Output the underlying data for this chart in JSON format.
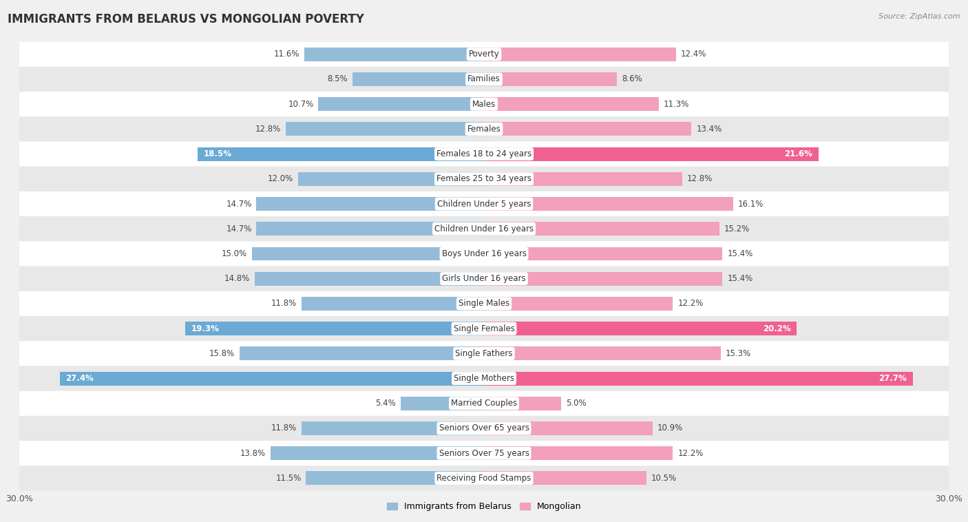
{
  "title": "IMMIGRANTS FROM BELARUS VS MONGOLIAN POVERTY",
  "source": "Source: ZipAtlas.com",
  "categories": [
    "Poverty",
    "Families",
    "Males",
    "Females",
    "Females 18 to 24 years",
    "Females 25 to 34 years",
    "Children Under 5 years",
    "Children Under 16 years",
    "Boys Under 16 years",
    "Girls Under 16 years",
    "Single Males",
    "Single Females",
    "Single Fathers",
    "Single Mothers",
    "Married Couples",
    "Seniors Over 65 years",
    "Seniors Over 75 years",
    "Receiving Food Stamps"
  ],
  "left_values": [
    11.6,
    8.5,
    10.7,
    12.8,
    18.5,
    12.0,
    14.7,
    14.7,
    15.0,
    14.8,
    11.8,
    19.3,
    15.8,
    27.4,
    5.4,
    11.8,
    13.8,
    11.5
  ],
  "right_values": [
    12.4,
    8.6,
    11.3,
    13.4,
    21.6,
    12.8,
    16.1,
    15.2,
    15.4,
    15.4,
    12.2,
    20.2,
    15.3,
    27.7,
    5.0,
    10.9,
    12.2,
    10.5
  ],
  "left_color_normal": "#94bcd8",
  "right_color_normal": "#f2a0bc",
  "left_color_highlight": "#6aaad4",
  "right_color_highlight": "#f06090",
  "highlight_rows": [
    4,
    11,
    13
  ],
  "xlim": 30.0,
  "left_label": "Immigrants from Belarus",
  "right_label": "Mongolian",
  "bg_color": "#f0f0f0",
  "row_bg_even": "#ffffff",
  "row_bg_odd": "#e8e8e8",
  "title_fontsize": 12,
  "cat_fontsize": 8.5,
  "val_fontsize": 8.5
}
